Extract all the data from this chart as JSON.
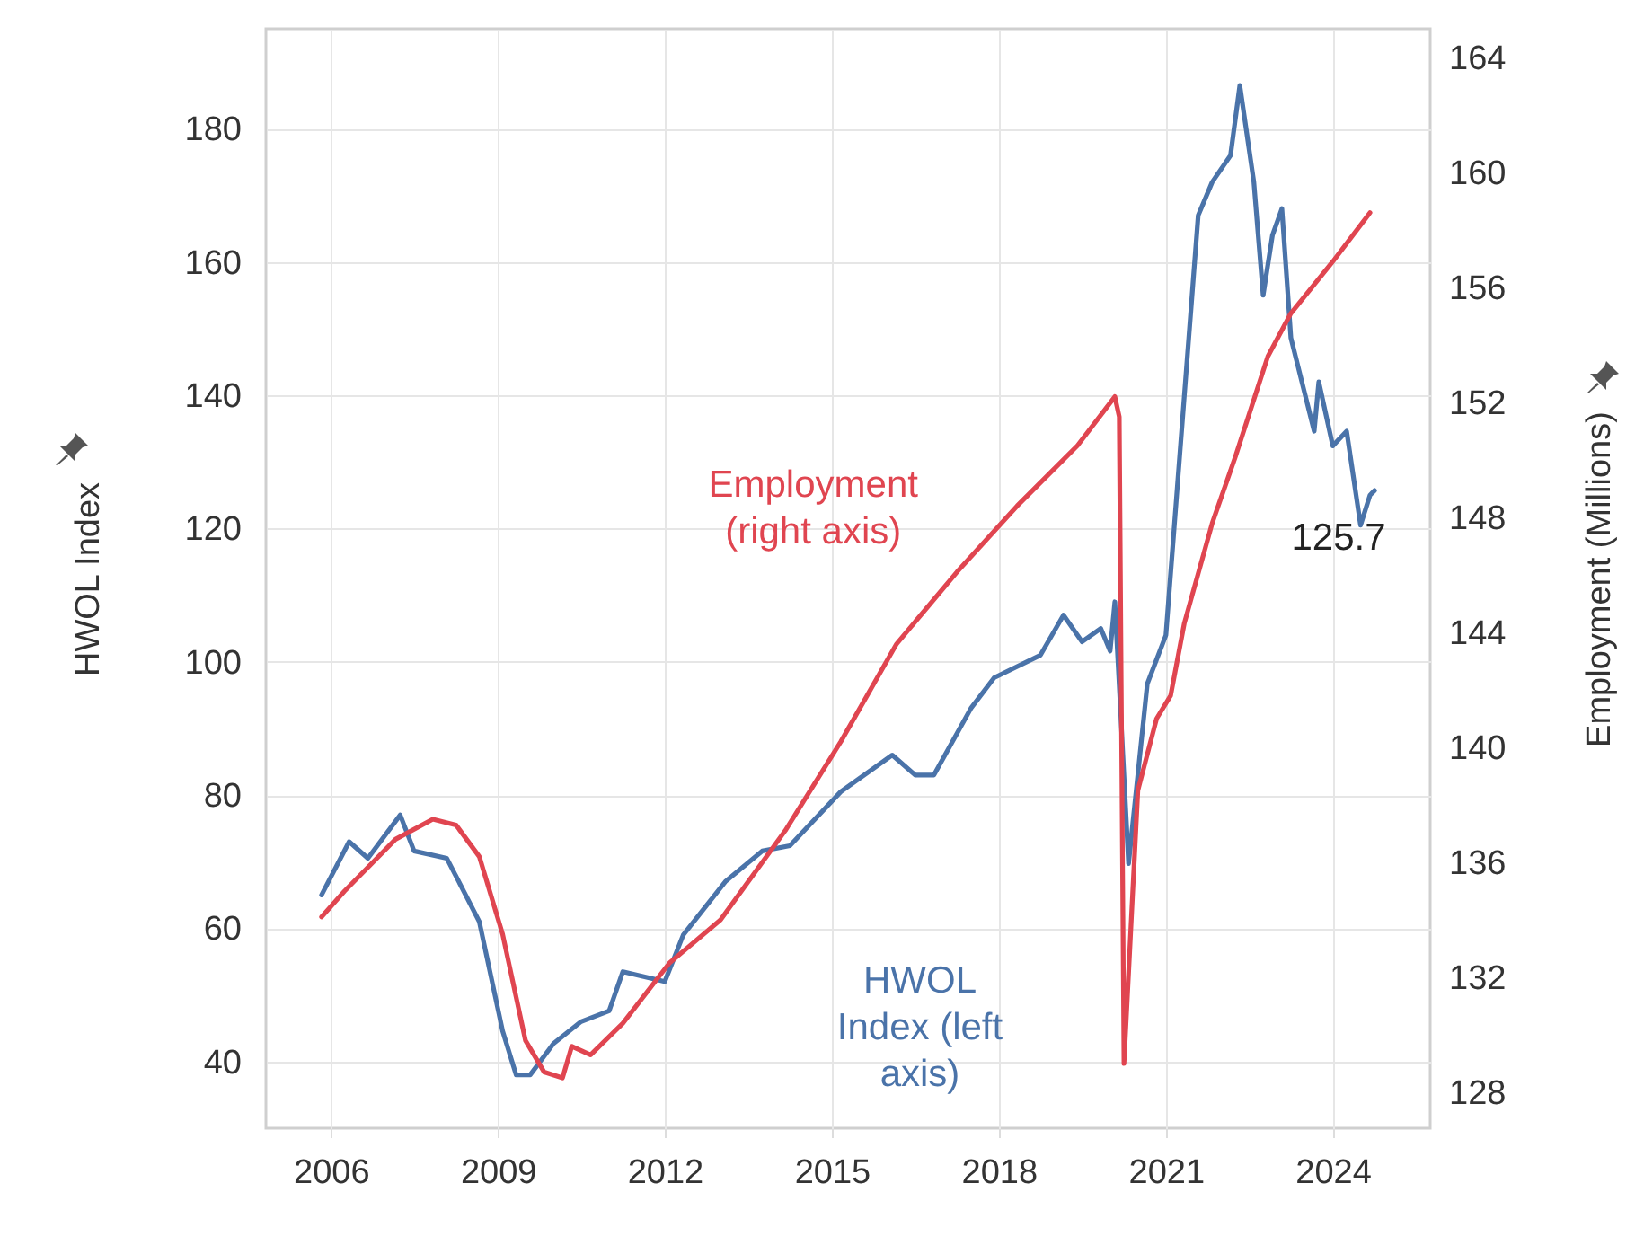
{
  "chart_data": {
    "type": "line",
    "xlim": [
      "2004-11",
      "2025-10"
    ],
    "xticks": [
      "2006",
      "2009",
      "2012",
      "2015",
      "2018",
      "2021",
      "2024"
    ],
    "ylim": [
      30,
      195
    ],
    "yticks": [
      40,
      60,
      80,
      100,
      120,
      140,
      160,
      180
    ],
    "y2lim": [
      126.75,
      165
    ],
    "y2ticks": [
      128,
      132,
      136,
      140,
      144,
      148,
      152,
      156,
      160,
      164
    ],
    "ylabel": "HWOL Index",
    "y2label": "Employment (Millions)",
    "grid": true,
    "legend": false,
    "annotations": [
      {
        "text": "125.7",
        "x": "2024-10",
        "y": 125.7
      }
    ],
    "series": [
      {
        "name": "HWOL Index (left axis)",
        "color": "#4a73a9",
        "x": [
          "2005-11",
          "2006-05",
          "2006-09",
          "2007-04",
          "2007-07",
          "2008-02",
          "2008-09",
          "2009-02",
          "2009-05",
          "2009-08",
          "2010-01",
          "2010-07",
          "2011-01",
          "2011-04",
          "2012-01",
          "2012-05",
          "2013-02",
          "2013-10",
          "2014-04",
          "2015-03",
          "2016-02",
          "2016-07",
          "2016-11",
          "2017-07",
          "2017-12",
          "2018-10",
          "2019-03",
          "2019-07",
          "2019-11",
          "2020-01",
          "2020-02",
          "2020-05",
          "2020-09",
          "2021-01",
          "2021-08",
          "2021-11",
          "2022-03",
          "2022-05",
          "2022-08",
          "2022-10",
          "2022-12",
          "2023-02",
          "2023-04",
          "2023-09",
          "2023-10",
          "2024-01",
          "2024-04",
          "2024-07",
          "2024-09",
          "2024-10"
        ],
        "values": [
          65,
          73,
          70.5,
          77,
          71.6,
          70.5,
          61,
          44.6,
          38,
          38,
          42.7,
          46,
          47.6,
          53.5,
          52,
          59,
          67,
          71.6,
          72.4,
          80.5,
          86,
          83,
          83,
          93,
          97.6,
          101,
          107,
          103,
          105,
          101.6,
          109,
          69.7,
          96.7,
          104,
          167,
          172,
          176,
          186.5,
          172,
          155,
          164,
          168,
          148.6,
          134.6,
          142,
          132.4,
          134.6,
          120.5,
          125,
          125.7
        ]
      },
      {
        "name": "Employment (right axis)",
        "color": "#e04550",
        "axis": "y2",
        "x": [
          "2005-11",
          "2006-04",
          "2007-03",
          "2007-11",
          "2008-04",
          "2008-09",
          "2009-02",
          "2009-07",
          "2009-11",
          "2010-03",
          "2010-05",
          "2010-09",
          "2011-04",
          "2012-02",
          "2013-01",
          "2014-03",
          "2015-03",
          "2016-03",
          "2017-04",
          "2018-05",
          "2019-06",
          "2020-02",
          "2020-03",
          "2020-04",
          "2020-07",
          "2020-11",
          "2021-02",
          "2021-05",
          "2021-11",
          "2022-04",
          "2022-11",
          "2023-04",
          "2024-01",
          "2024-09"
        ],
        "values": [
          134.1,
          135.0,
          136.8,
          137.5,
          137.3,
          136.2,
          133.5,
          129.8,
          128.7,
          128.5,
          129.6,
          129.3,
          130.4,
          132.5,
          134.0,
          137.1,
          140.2,
          143.6,
          146.1,
          148.4,
          150.5,
          152.2,
          151.5,
          129.0,
          138.5,
          141,
          141.8,
          144.3,
          147.8,
          150.1,
          153.6,
          155.1,
          156.9,
          158.6
        ]
      }
    ]
  }
}
